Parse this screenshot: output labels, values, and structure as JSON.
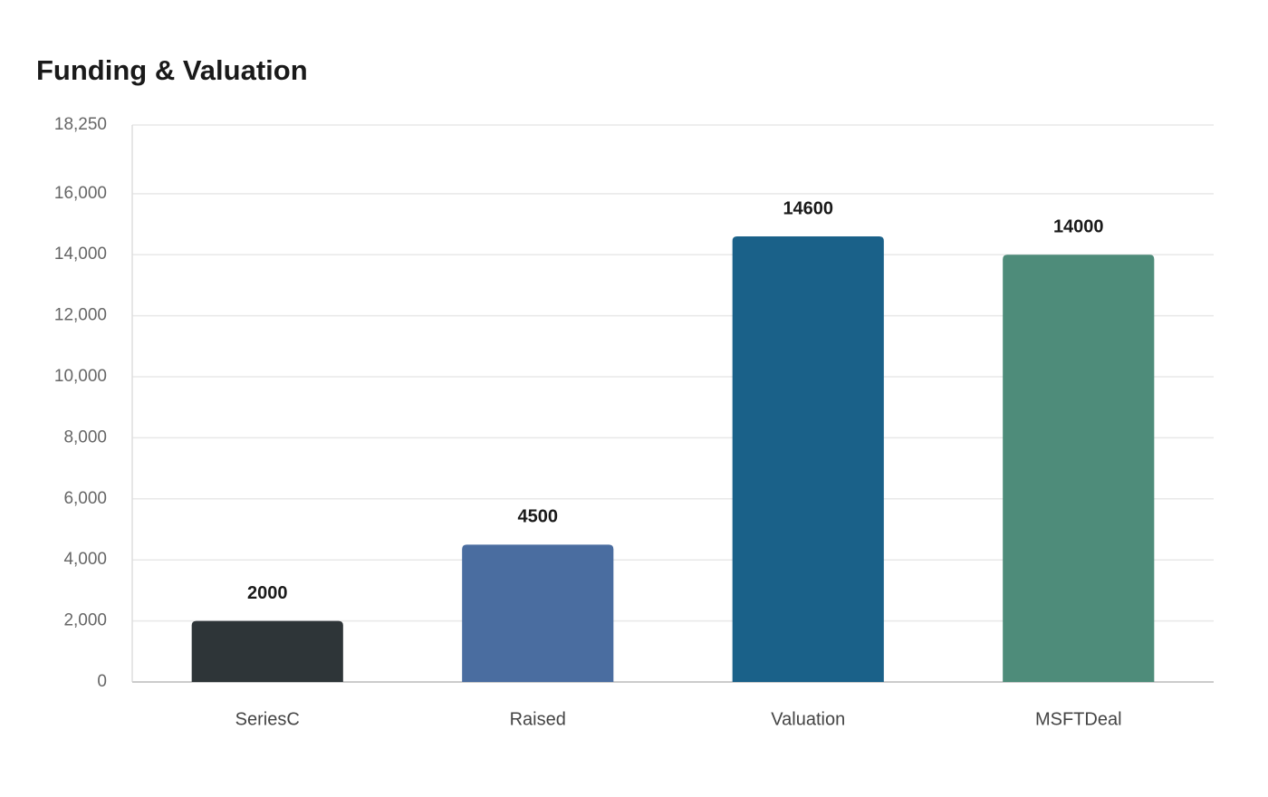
{
  "chart_data": {
    "type": "bar",
    "title": "Funding & Valuation",
    "categories": [
      "SeriesC",
      "Raised",
      "Valuation",
      "MSFTDeal"
    ],
    "values": [
      2000,
      4500,
      14600,
      14000
    ],
    "colors": [
      "#2e3538",
      "#4a6da0",
      "#1a6189",
      "#4e8c7a"
    ],
    "ylim": [
      0,
      18250
    ],
    "yticks": [
      0,
      {
        "value": 2000,
        "label": "2,000"
      },
      {
        "value": 4000,
        "label": "4,000"
      },
      {
        "value": 6000,
        "label": "6,000"
      },
      {
        "value": 8000,
        "label": "8,000"
      },
      {
        "value": 10000,
        "label": "10,000"
      },
      {
        "value": 12000,
        "label": "12,000"
      },
      {
        "value": 14000,
        "label": "14,000"
      },
      {
        "value": 16000,
        "label": "16,000"
      },
      {
        "value": 18250,
        "label": "18,250"
      }
    ],
    "grid": true
  }
}
